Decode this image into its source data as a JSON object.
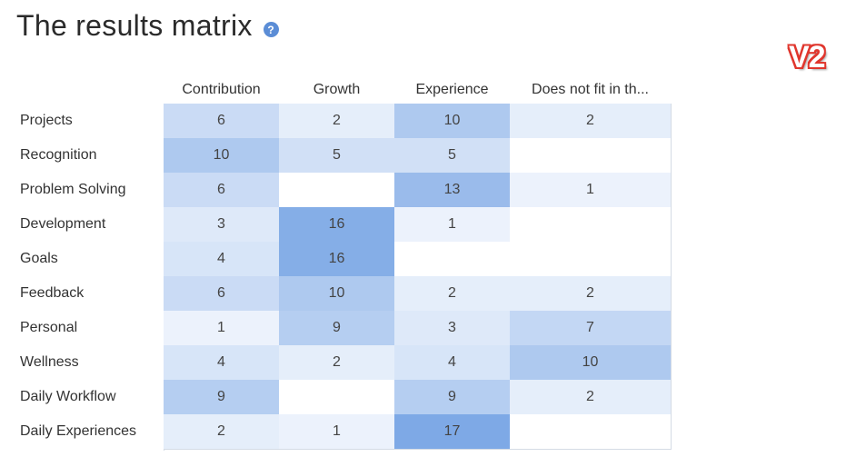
{
  "header": {
    "title": "The results matrix",
    "help_icon": "question-mark-icon",
    "help_glyph": "?",
    "version_badge": "V2"
  },
  "chart_data": {
    "type": "heatmap",
    "title": "The results matrix",
    "columns": [
      "Contribution",
      "Growth",
      "Experience",
      "Does not fit in th..."
    ],
    "rows": [
      "Projects",
      "Recognition",
      "Problem Solving",
      "Development",
      "Goals",
      "Feedback",
      "Personal",
      "Wellness",
      "Daily Workflow",
      "Daily Experiences"
    ],
    "values": [
      [
        6,
        2,
        10,
        2
      ],
      [
        10,
        5,
        5,
        null
      ],
      [
        6,
        null,
        13,
        1
      ],
      [
        3,
        16,
        1,
        null
      ],
      [
        4,
        16,
        null,
        null
      ],
      [
        6,
        10,
        2,
        2
      ],
      [
        1,
        9,
        3,
        7
      ],
      [
        4,
        2,
        4,
        10
      ],
      [
        9,
        null,
        9,
        2
      ],
      [
        2,
        1,
        17,
        null
      ]
    ],
    "color_scale": {
      "low": "#f3f7fd",
      "high": "#7ea9e6",
      "empty": "#ffffff",
      "max_value": 17
    }
  }
}
